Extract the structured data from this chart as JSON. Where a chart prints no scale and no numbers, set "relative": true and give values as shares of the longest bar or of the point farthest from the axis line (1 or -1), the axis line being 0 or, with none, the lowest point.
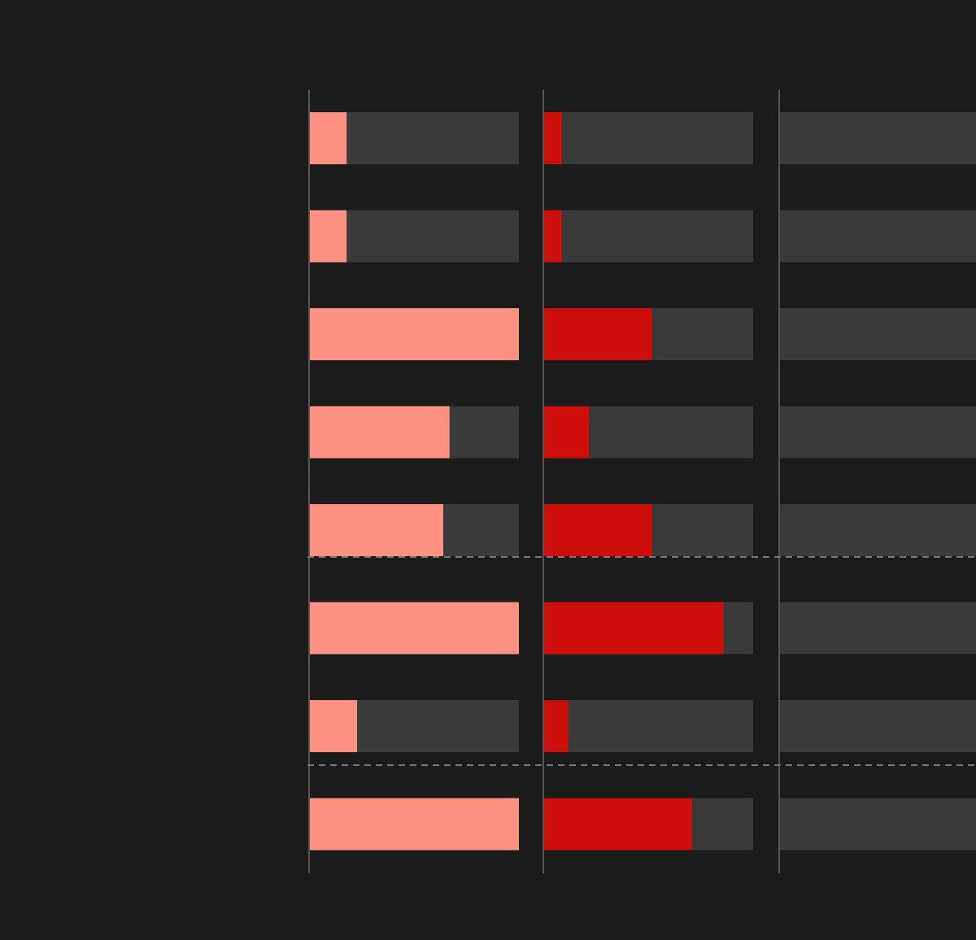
{
  "chart_data": [
    {
      "type": "bar",
      "orientation": "horizontal",
      "stacked": true,
      "relative": true,
      "categories": [
        null,
        null,
        null,
        null,
        null,
        null,
        null,
        null
      ],
      "series": [
        {
          "color": "#fe9182",
          "values": [
            0.18,
            0.18,
            1,
            0.67,
            0.64,
            1,
            0.23,
            1
          ]
        },
        {
          "color": "#3a3a3a",
          "values": [
            0.82,
            0.82,
            0,
            0.33,
            0.36,
            0,
            0.77,
            0
          ]
        }
      ]
    },
    {
      "type": "bar",
      "orientation": "horizontal",
      "stacked": true,
      "relative": true,
      "categories": [
        null,
        null,
        null,
        null,
        null,
        null,
        null,
        null
      ],
      "series": [
        {
          "color": "#cc0f0a",
          "values": [
            0.09,
            0.09,
            0.52,
            0.22,
            0.52,
            0.86,
            0.12,
            0.71
          ]
        },
        {
          "color": "#3a3a3a",
          "values": [
            0.91,
            0.91,
            0.48,
            0.78,
            0.48,
            0.14,
            0.88,
            0.29
          ]
        }
      ]
    },
    {
      "type": "bar",
      "orientation": "horizontal",
      "stacked": true,
      "relative": true,
      "categories": [
        null,
        null,
        null,
        null,
        null,
        null,
        null,
        null
      ],
      "series": [
        {
          "color": "#3a3a3a",
          "values": [
            1,
            1,
            1,
            1,
            1,
            1,
            1,
            1
          ]
        }
      ]
    }
  ]
}
